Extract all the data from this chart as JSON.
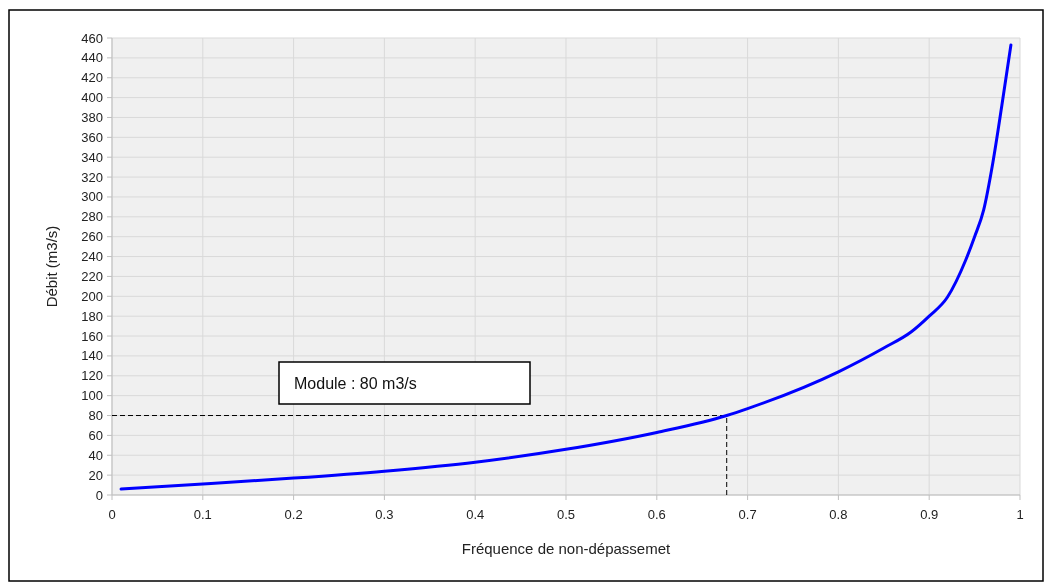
{
  "chart_data": {
    "type": "line",
    "xlabel": "Fréquence de non-dépassemet",
    "ylabel": "Débit (m3/s)",
    "x": [
      0.01,
      0.1,
      0.2,
      0.3,
      0.4,
      0.5,
      0.6,
      0.677,
      0.7,
      0.8,
      0.85,
      0.88,
      0.9,
      0.92,
      0.94,
      0.95,
      0.96,
      0.97,
      0.98,
      0.99
    ],
    "series": [
      {
        "color": "#0000ff",
        "values": [
          6,
          11,
          17,
          24,
          33,
          46,
          63,
          80,
          87,
          124,
          148,
          164,
          180,
          199,
          236,
          260,
          287,
          334,
          392,
          453
        ]
      }
    ],
    "xlim": [
      0,
      1
    ],
    "xticks": [
      0,
      0.1,
      0.2,
      0.3,
      0.4,
      0.5,
      0.6,
      0.7,
      0.8,
      0.9,
      1
    ],
    "ylim": [
      0,
      460
    ],
    "yticks": [
      0,
      20,
      40,
      60,
      80,
      100,
      120,
      140,
      160,
      180,
      200,
      220,
      240,
      260,
      280,
      300,
      320,
      340,
      360,
      380,
      400,
      420,
      440,
      460
    ],
    "grid": true,
    "marker": "none",
    "line_style": "solid",
    "ref_lines": [
      {
        "axis": "y",
        "value": 80,
        "line_style": "dashed",
        "color": "#000000"
      },
      {
        "axis": "x",
        "value": 0.677,
        "line_style": "dashed",
        "color": "#000000"
      }
    ],
    "annotations": [
      "Module : 80 m3/s"
    ]
  }
}
